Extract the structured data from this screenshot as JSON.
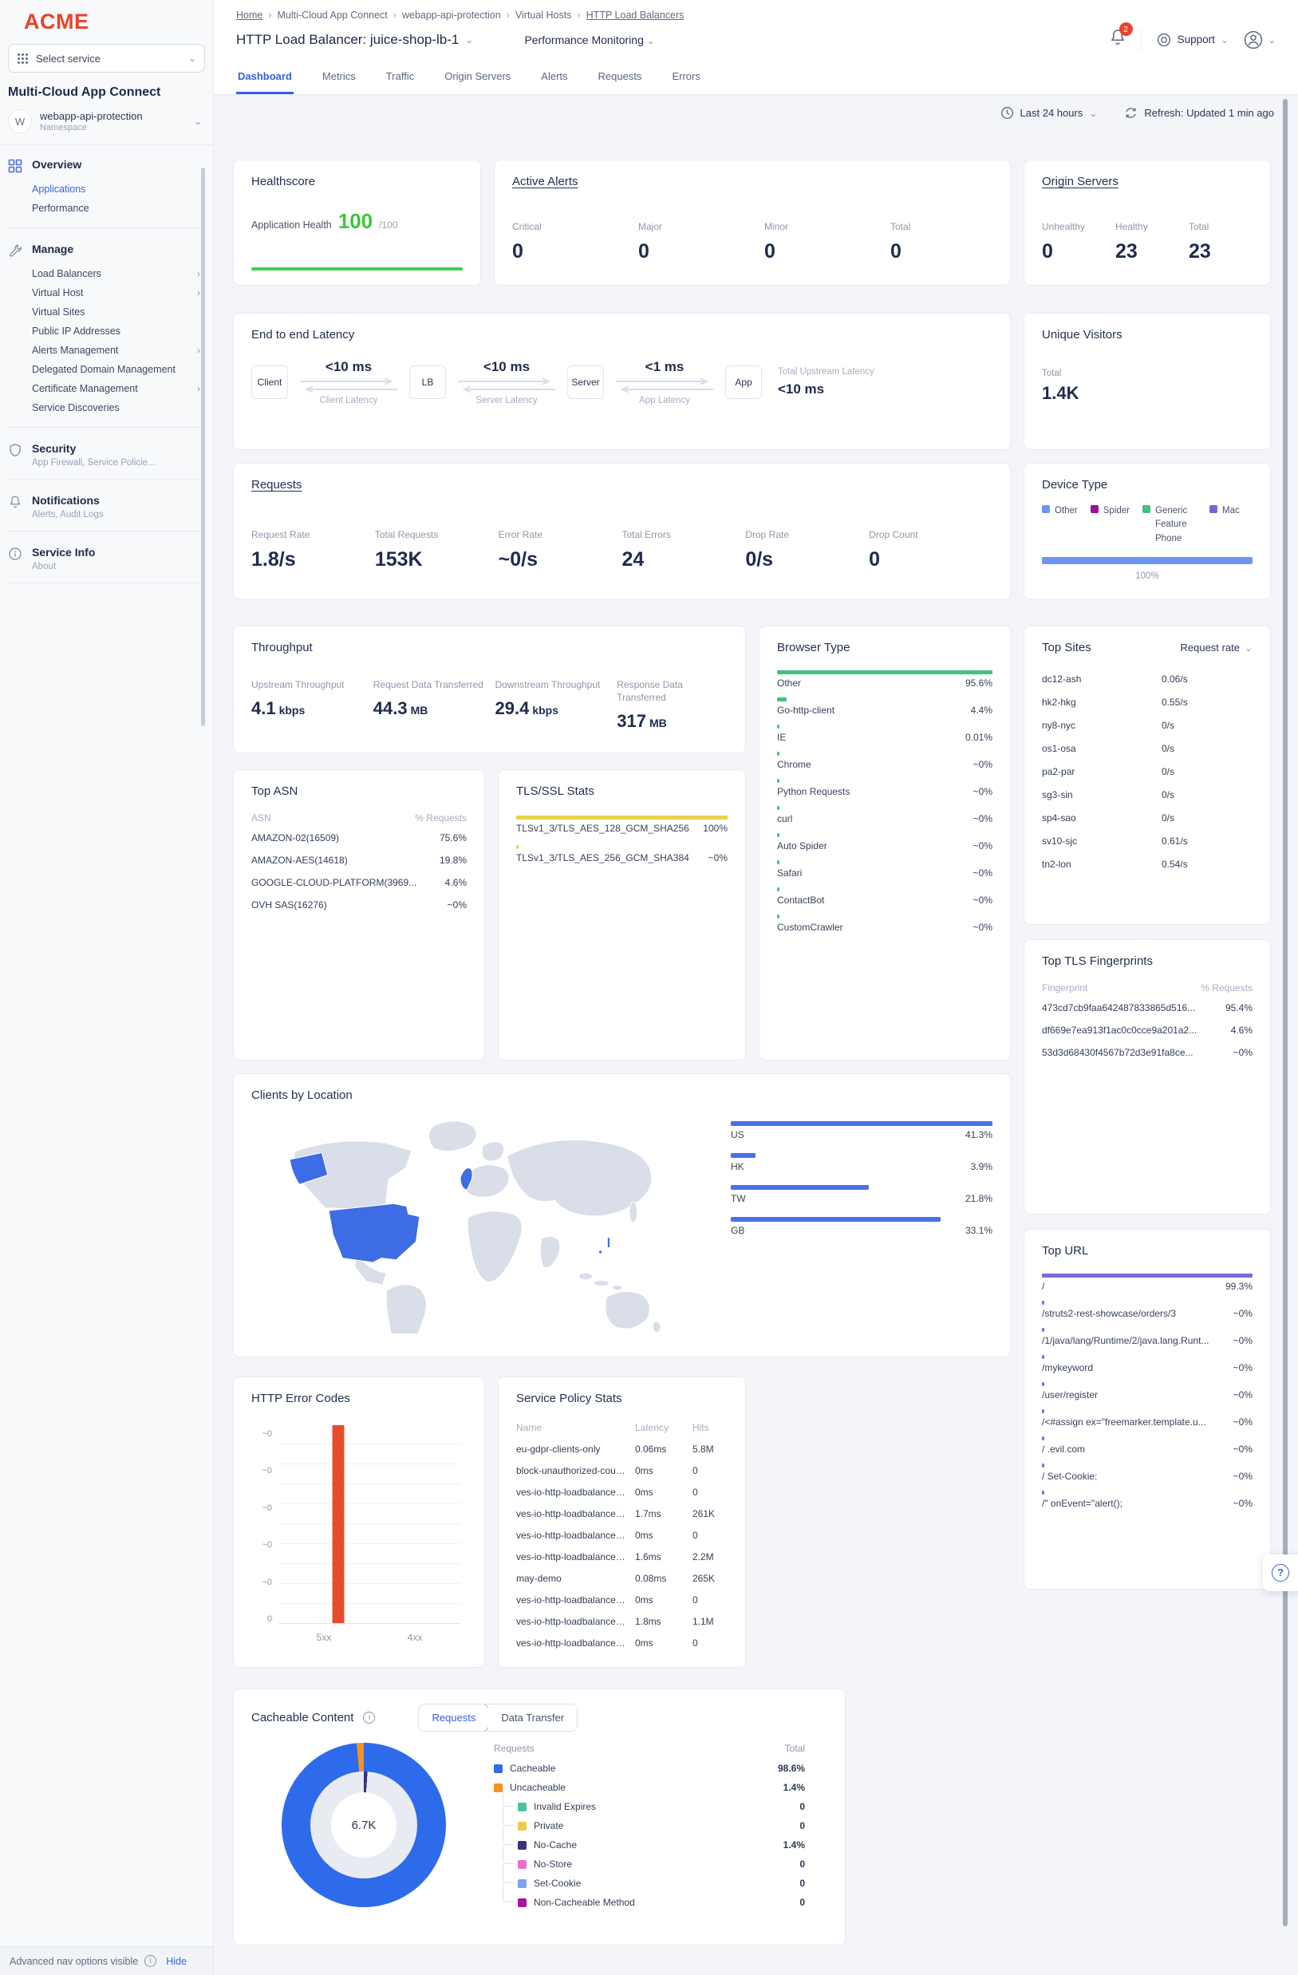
{
  "sidebar": {
    "logo": "ACME",
    "service_picker": {
      "placeholder": "Select service"
    },
    "product": "Multi-Cloud App Connect",
    "namespace": {
      "initial": "W",
      "name": "webapp-api-protection",
      "type": "Namespace"
    },
    "nav": {
      "overview": {
        "label": "Overview",
        "items": [
          {
            "label": "Applications",
            "cls": "active",
            "chev": ""
          },
          {
            "label": "Performance",
            "cls": "",
            "chev": ""
          }
        ]
      },
      "manage": {
        "label": "Manage",
        "items": [
          {
            "label": "Load Balancers",
            "chev": "›"
          },
          {
            "label": "Virtual Host",
            "chev": "›"
          },
          {
            "label": "Virtual Sites",
            "chev": ""
          },
          {
            "label": "Public IP Addresses",
            "chev": ""
          },
          {
            "label": "Alerts Management",
            "chev": "›"
          },
          {
            "label": "Delegated Domain Management",
            "chev": ""
          },
          {
            "label": "Certificate Management",
            "chev": "›"
          },
          {
            "label": "Service Discoveries",
            "chev": ""
          }
        ]
      },
      "security": {
        "label": "Security",
        "sub": "App Firewall, Service Policie..."
      },
      "notifications": {
        "label": "Notifications",
        "sub": "Alerts, Audit Logs"
      },
      "service_info": {
        "label": "Service Info",
        "sub": "About"
      }
    },
    "footer": {
      "text": "Advanced nav options visible",
      "action": "Hide"
    }
  },
  "header": {
    "breadcrumb": [
      {
        "label": "Home",
        "cls": "link"
      },
      {
        "label": "Multi-Cloud App Connect",
        "cls": ""
      },
      {
        "label": "webapp-api-protection",
        "cls": ""
      },
      {
        "label": "Virtual Hosts",
        "cls": ""
      },
      {
        "label": "HTTP Load Balancers",
        "cls": "link"
      }
    ],
    "title": "HTTP Load Balancer: juice-shop-lb-1",
    "secondary": "Performance Monitoring",
    "notification_count": "2",
    "support": "Support",
    "tabs": [
      {
        "label": "Dashboard",
        "cls": "active"
      },
      {
        "label": "Metrics",
        "cls": ""
      },
      {
        "label": "Traffic",
        "cls": ""
      },
      {
        "label": "Origin Servers",
        "cls": ""
      },
      {
        "label": "Alerts",
        "cls": ""
      },
      {
        "label": "Requests",
        "cls": ""
      },
      {
        "label": "Errors",
        "cls": ""
      }
    ]
  },
  "controls": {
    "range": "Last 24 hours",
    "refresh": "Refresh: Updated 1 min ago"
  },
  "healthscore": {
    "title": "Healthscore",
    "label": "Application Health",
    "value": "100",
    "denom": "/100"
  },
  "active_alerts": {
    "title": "Active Alerts",
    "stats": [
      {
        "label": "Critical",
        "value": "0"
      },
      {
        "label": "Major",
        "value": "0"
      },
      {
        "label": "Minor",
        "value": "0"
      },
      {
        "label": "Total",
        "value": "0"
      }
    ]
  },
  "origin_servers": {
    "title": "Origin Servers",
    "stats": [
      {
        "label": "Unhealthy",
        "value": "0"
      },
      {
        "label": "Healthy",
        "value": "23"
      },
      {
        "label": "Total",
        "value": "23"
      }
    ]
  },
  "latency": {
    "title": "End to end Latency",
    "nodes": [
      "Client",
      "LB",
      "Server",
      "App"
    ],
    "segments": [
      {
        "value": "<10 ms",
        "label": "Client Latency"
      },
      {
        "value": "<10 ms",
        "label": "Server Latency"
      },
      {
        "value": "<1 ms",
        "label": "App Latency"
      }
    ],
    "total_label": "Total Upstream Latency",
    "total_value": "<10 ms"
  },
  "unique_visitors": {
    "title": "Unique Visitors",
    "label": "Total",
    "value": "1.4K"
  },
  "requests": {
    "title": "Requests",
    "stats": [
      {
        "label": "Request Rate",
        "value": "1.8/s"
      },
      {
        "label": "Total Requests",
        "value": "153K"
      },
      {
        "label": "Error Rate",
        "value": "~0/s"
      },
      {
        "label": "Total Errors",
        "value": "24"
      },
      {
        "label": "Drop Rate",
        "value": "0/s"
      },
      {
        "label": "Drop Count",
        "value": "0"
      }
    ]
  },
  "device_type": {
    "title": "Device Type",
    "legend": [
      {
        "label": "Other",
        "color": "#6d96f3"
      },
      {
        "label": "Spider",
        "color": "#9c109c"
      },
      {
        "label": "Generic Feature Phone",
        "color": "#3fc380"
      },
      {
        "label": "Mac",
        "color": "#7667d6"
      }
    ],
    "bar_label": "100%",
    "bar_color": "#6d96f3"
  },
  "throughput": {
    "title": "Throughput",
    "stats": [
      {
        "label": "Upstream Throughput",
        "num": "4.1",
        "unit": "kbps"
      },
      {
        "label": "Request Data Transferred",
        "num": "44.3",
        "unit": "MB"
      },
      {
        "label": "Downstream Throughput",
        "num": "29.4",
        "unit": "kbps"
      },
      {
        "label": "Response Data Transferred",
        "num": "317",
        "unit": "MB"
      }
    ]
  },
  "browser_type": {
    "title": "Browser Type",
    "rows": [
      {
        "label": "Other",
        "value": "95.6%",
        "barw": "100%"
      },
      {
        "label": "Go-http-client",
        "value": "4.4%",
        "barw": "4.6%"
      },
      {
        "label": "IE",
        "value": "0.01%",
        "barw": "1%"
      },
      {
        "label": "Chrome",
        "value": "~0%",
        "barw": "1%"
      },
      {
        "label": "Python Requests",
        "value": "~0%",
        "barw": "1%"
      },
      {
        "label": "curl",
        "value": "~0%",
        "barw": "1%"
      },
      {
        "label": "Auto Spider",
        "value": "~0%",
        "barw": "1%"
      },
      {
        "label": "Safari",
        "value": "~0%",
        "barw": "1%"
      },
      {
        "label": "ContactBot",
        "value": "~0%",
        "barw": "1%"
      },
      {
        "label": "CustomCrawler",
        "value": "~0%",
        "barw": "1%"
      }
    ]
  },
  "top_sites": {
    "title": "Top Sites",
    "sort": "Request rate",
    "rows": [
      {
        "name": "dc12-ash",
        "value": "0.06/s"
      },
      {
        "name": "hk2-hkg",
        "value": "0.55/s"
      },
      {
        "name": "ny8-nyc",
        "value": "0/s"
      },
      {
        "name": "os1-osa",
        "value": "0/s"
      },
      {
        "name": "pa2-par",
        "value": "0/s"
      },
      {
        "name": "sg3-sin",
        "value": "0/s"
      },
      {
        "name": "sp4-sao",
        "value": "0/s"
      },
      {
        "name": "sv10-sjc",
        "value": "0.61/s"
      },
      {
        "name": "tn2-lon",
        "value": "0.54/s"
      }
    ]
  },
  "top_asn": {
    "title": "Top ASN",
    "col1": "ASN",
    "col2": "% Requests",
    "rows": [
      {
        "name": "AMAZON-02(16509)",
        "value": "75.6%"
      },
      {
        "name": "AMAZON-AES(14618)",
        "value": "19.8%"
      },
      {
        "name": "GOOGLE-CLOUD-PLATFORM(3969...",
        "value": "4.6%"
      },
      {
        "name": "OVH SAS(16276)",
        "value": "~0%"
      }
    ]
  },
  "tls_stats": {
    "title": "TLS/SSL Stats",
    "rows": [
      {
        "label": "TLSv1_3/TLS_AES_128_GCM_SHA256",
        "value": "100%",
        "barw": "100%"
      },
      {
        "label": "TLSv1_3/TLS_AES_256_GCM_SHA384",
        "value": "~0%",
        "barw": "1%"
      }
    ]
  },
  "fingerprints": {
    "title": "Top TLS Fingerprints",
    "col1": "Fingerprint",
    "col2": "% Requests",
    "rows": [
      {
        "name": "473cd7cb9faa642487833865d516...",
        "value": "95.4%"
      },
      {
        "name": "df669e7ea913f1ac0c0cce9a201a2...",
        "value": "4.6%"
      },
      {
        "name": "53d3d68430f4567b72d3e91fa8ce...",
        "value": "~0%"
      }
    ]
  },
  "locations": {
    "title": "Clients by Location",
    "rows": [
      {
        "label": "US",
        "value": "41.3%",
        "barw": "100%"
      },
      {
        "label": "HK",
        "value": "3.9%",
        "barw": "9.4%"
      },
      {
        "label": "TW",
        "value": "21.8%",
        "barw": "52.8%"
      },
      {
        "label": "GB",
        "value": "33.1%",
        "barw": "80.1%"
      }
    ]
  },
  "top_url": {
    "title": "Top URL",
    "rows": [
      {
        "label": "/",
        "value": "99.3%",
        "barw": "100%"
      },
      {
        "label": "/struts2-rest-showcase/orders/3",
        "value": "~0%",
        "barw": "1%"
      },
      {
        "label": "/1/java/lang/Runtime/2/java.lang.Runt...",
        "value": "~0%",
        "barw": "1%"
      },
      {
        "label": "/mykeyword",
        "value": "~0%",
        "barw": "1%"
      },
      {
        "label": "/user/register",
        "value": "~0%",
        "barw": "1%"
      },
      {
        "label": "/<#assign ex=\"freemarker.template.u...",
        "value": "~0%",
        "barw": "1%"
      },
      {
        "label": "/ .evil.com",
        "value": "~0%",
        "barw": "1%"
      },
      {
        "label": "/ Set-Cookie:",
        "value": "~0%",
        "barw": "1%"
      },
      {
        "label": "/\" onEvent=\"alert();",
        "value": "~0%",
        "barw": "1%"
      }
    ]
  },
  "error_codes": {
    "title": "HTTP Error Codes",
    "ylabels": [
      "~0",
      "~0",
      "~0",
      "~0",
      "~0",
      "0"
    ],
    "categories": [
      {
        "label": "5xx",
        "barh": "248px"
      },
      {
        "label": "4xx",
        "barh": "0px"
      }
    ],
    "bar_color": "#e84c2f"
  },
  "service_policy": {
    "title": "Service Policy Stats",
    "cols": {
      "name": "Name",
      "latency": "Latency",
      "hits": "Hits"
    },
    "rows": [
      {
        "name": "eu-gdpr-clients-only",
        "latency": "0.06ms",
        "hits": "5.8M"
      },
      {
        "name": "block-unauthorized-countries",
        "latency": "0ms",
        "hits": "0"
      },
      {
        "name": "ves-io-http-loadbalancer-ip-rep...",
        "latency": "0ms",
        "hits": "0"
      },
      {
        "name": "ves-io-http-loadbalancer-rate-li...",
        "latency": "1.7ms",
        "hits": "261K"
      },
      {
        "name": "ves-io-http-loadbalancer-ip-rep...",
        "latency": "0ms",
        "hits": "0"
      },
      {
        "name": "ves-io-http-loadbalancer-rate-li...",
        "latency": "1.6ms",
        "hits": "2.2M"
      },
      {
        "name": "may-demo",
        "latency": "0.08ms",
        "hits": "265K"
      },
      {
        "name": "ves-io-http-loadbalancer-ip-rep...",
        "latency": "0ms",
        "hits": "0"
      },
      {
        "name": "ves-io-http-loadbalancer-rate-li...",
        "latency": "1.8ms",
        "hits": "1.1M"
      },
      {
        "name": "ves-io-http-loadbalancer-ip-rep...",
        "latency": "0ms",
        "hits": "0"
      }
    ]
  },
  "cacheable": {
    "title": "Cacheable Content",
    "tabs": [
      {
        "label": "Requests",
        "cls": "active"
      },
      {
        "label": "Data Transfer",
        "cls": ""
      }
    ],
    "center": "6.7K",
    "col1": "Requests",
    "col2": "Total",
    "colors": {
      "cacheable": "#2e6bea",
      "uncacheable": "#f5941f"
    },
    "rows": [
      {
        "label": "Cacheable",
        "value": "98.6%",
        "color": "#2e6bea",
        "cls": ""
      },
      {
        "label": "Uncacheable",
        "value": "1.4%",
        "color": "#f5941f",
        "cls": ""
      },
      {
        "label": "Invalid Expires",
        "value": "0",
        "color": "#45c4a4",
        "cls": "child"
      },
      {
        "label": "Private",
        "value": "0",
        "color": "#efc94c",
        "cls": "child"
      },
      {
        "label": "No-Cache",
        "value": "1.4%",
        "color": "#3b2f80",
        "cls": "child"
      },
      {
        "label": "No-Store",
        "value": "0",
        "color": "#e66fc9",
        "cls": "child"
      },
      {
        "label": "Set-Cookie",
        "value": "0",
        "color": "#7ba1f5",
        "cls": "child"
      },
      {
        "label": "Non-Cacheable Method",
        "value": "0",
        "color": "#a9139d",
        "cls": "child"
      }
    ]
  },
  "help": {
    "label": "?"
  }
}
